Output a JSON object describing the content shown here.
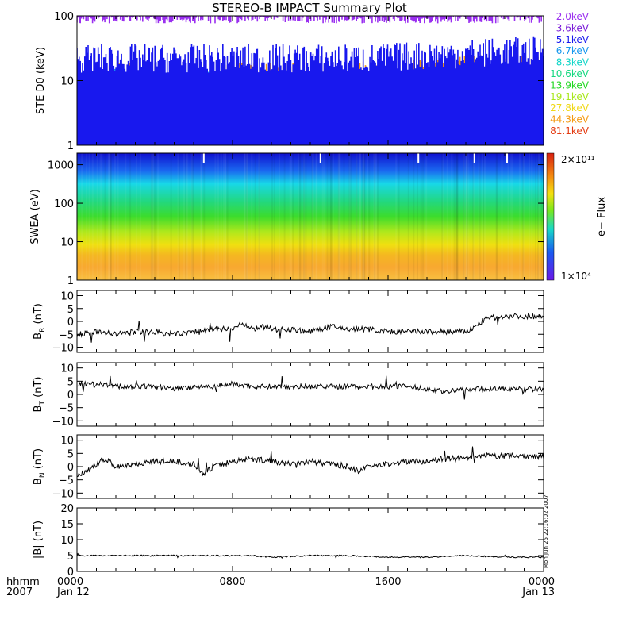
{
  "title": "STEREO-B IMPACT Summary Plot",
  "footer": {
    "time_label": "hhmm",
    "year_label": "2007",
    "stamp": "Mon Jun 25 22:16:02 2007"
  },
  "time_ticks": [
    {
      "hhmm": "0000",
      "date": "Jan 12",
      "hours": 0
    },
    {
      "hhmm": "0800",
      "date": "",
      "hours": 8
    },
    {
      "hhmm": "1600",
      "date": "",
      "hours": 16
    },
    {
      "hhmm": "0000",
      "date": "Jan 13",
      "hours": 24
    }
  ],
  "chart_data": [
    {
      "id": "ste",
      "type": "line",
      "ylabel": "STE D0 (keV)",
      "yscale": "log",
      "ylim": [
        1,
        100
      ],
      "yticks": [
        1,
        10,
        100
      ],
      "ytick_labels": [
        "1",
        "10",
        "100"
      ],
      "x_unit": "hours",
      "xlim": [
        0,
        24
      ],
      "series": [
        {
          "name": "2.0keV",
          "color": "#9a2ff0",
          "level": 91
        },
        {
          "name": "3.6keV",
          "color": "#7a1bd8",
          "level": 60
        },
        {
          "name": "5.1keV",
          "color": "#1818ee",
          "level": 22
        },
        {
          "name": "6.7keV",
          "color": "#1898ee",
          "level": 9
        },
        {
          "name": "8.3keV",
          "color": "#12d6c8",
          "level": 7
        },
        {
          "name": "10.6keV",
          "color": "#14d880",
          "level": 5
        },
        {
          "name": "13.9keV",
          "color": "#22d822",
          "level": 4
        },
        {
          "name": "19.1keV",
          "color": "#a8e81a",
          "level": 2.9
        },
        {
          "name": "27.8keV",
          "color": "#f0d818",
          "level": 2.3
        },
        {
          "name": "44.3keV",
          "color": "#f49a12",
          "level": 12
        },
        {
          "name": "81.1keV",
          "color": "#e43a10",
          "level": 1.6
        }
      ]
    },
    {
      "id": "swea",
      "type": "heatmap",
      "ylabel": "SWEA (eV)",
      "yscale": "log",
      "ylim": [
        1,
        2000
      ],
      "yticks": [
        1,
        10,
        100,
        1000
      ],
      "ytick_labels": [
        "1",
        "10",
        "100",
        "1000"
      ],
      "xlim": [
        0,
        24
      ],
      "colorbar": {
        "label": "e− Flux",
        "max_label": "2×10¹¹",
        "min_label": "1×10⁴",
        "min": 10000,
        "max": 200000000000
      }
    },
    {
      "id": "br",
      "type": "line",
      "ylabel": "B_R (nT)",
      "ylabel_main": "B",
      "ylabel_sub": "R",
      "ylabel_unit": "(nT)",
      "ylim": [
        -12,
        12
      ],
      "yticks": [
        -10,
        -5,
        0,
        5,
        10
      ],
      "ytick_labels": [
        "−10",
        "−5",
        "0",
        "5",
        "10"
      ],
      "xlim": [
        0,
        24
      ],
      "x": [
        0,
        1,
        2,
        3,
        4,
        5,
        6,
        7,
        8,
        8.4,
        9,
        9.5,
        10,
        11,
        12,
        13,
        14,
        15,
        16,
        17,
        18,
        19,
        20,
        20.5,
        21,
        22,
        23,
        24
      ],
      "y": [
        -5,
        -4,
        -5,
        -4,
        -4,
        -5,
        -4,
        -3,
        -3,
        -1,
        -3,
        -2,
        -3,
        -3,
        -4,
        -2,
        -3,
        -3,
        -4,
        -4,
        -4,
        -4,
        -4,
        -2,
        1,
        2,
        2,
        2
      ]
    },
    {
      "id": "bt",
      "type": "line",
      "ylabel": "B_T (nT)",
      "ylabel_main": "B",
      "ylabel_sub": "T",
      "ylabel_unit": "(nT)",
      "ylim": [
        -12,
        12
      ],
      "yticks": [
        -10,
        -5,
        0,
        5,
        10
      ],
      "ytick_labels": [
        "−10",
        "−5",
        "0",
        "5",
        "10"
      ],
      "xlim": [
        0,
        24
      ],
      "x": [
        0,
        1,
        2,
        3,
        4,
        5,
        6,
        7,
        8,
        9,
        10,
        11,
        12,
        13,
        14,
        15,
        16,
        17,
        18,
        19,
        20,
        21,
        22,
        23,
        24
      ],
      "y": [
        4,
        4,
        3,
        3,
        3,
        2,
        3,
        3,
        4,
        3,
        3,
        3,
        3,
        3,
        3,
        3,
        3,
        3,
        2,
        1,
        2,
        2,
        2,
        2,
        2
      ]
    },
    {
      "id": "bn",
      "type": "line",
      "ylabel": "B_N (nT)",
      "ylabel_main": "B",
      "ylabel_sub": "N",
      "ylabel_unit": "(nT)",
      "ylim": [
        -12,
        12
      ],
      "yticks": [
        -10,
        -5,
        0,
        5,
        10
      ],
      "ytick_labels": [
        "−10",
        "−5",
        "0",
        "5",
        "10"
      ],
      "xlim": [
        0,
        24
      ],
      "x": [
        0,
        0.5,
        1,
        1.5,
        2,
        3,
        4,
        5,
        6,
        6.5,
        7,
        8,
        9,
        10,
        11,
        12,
        13,
        14,
        14.5,
        15,
        16,
        17,
        18,
        19,
        20,
        21,
        22,
        23,
        24
      ],
      "y": [
        -3,
        -2,
        1,
        3,
        0,
        1,
        2,
        2,
        1,
        -3,
        0,
        2,
        3,
        2,
        1,
        2,
        1,
        0,
        -2,
        0,
        1,
        2,
        2,
        3,
        3,
        4,
        4,
        4,
        4
      ]
    },
    {
      "id": "bmag",
      "type": "line",
      "ylabel": "|B| (nT)",
      "ylim": [
        0,
        20
      ],
      "yticks": [
        0,
        5,
        10,
        15,
        20
      ],
      "ytick_labels": [
        "0",
        "5",
        "10",
        "15",
        "20"
      ],
      "xlim": [
        0,
        24
      ],
      "x": [
        0,
        2,
        4,
        6,
        8,
        9,
        10,
        12,
        14,
        16,
        18,
        20,
        22,
        24
      ],
      "y": [
        5,
        5,
        5,
        5,
        5,
        5,
        4.5,
        5,
        5,
        4.5,
        4.5,
        5,
        4.5,
        4.5
      ]
    }
  ]
}
